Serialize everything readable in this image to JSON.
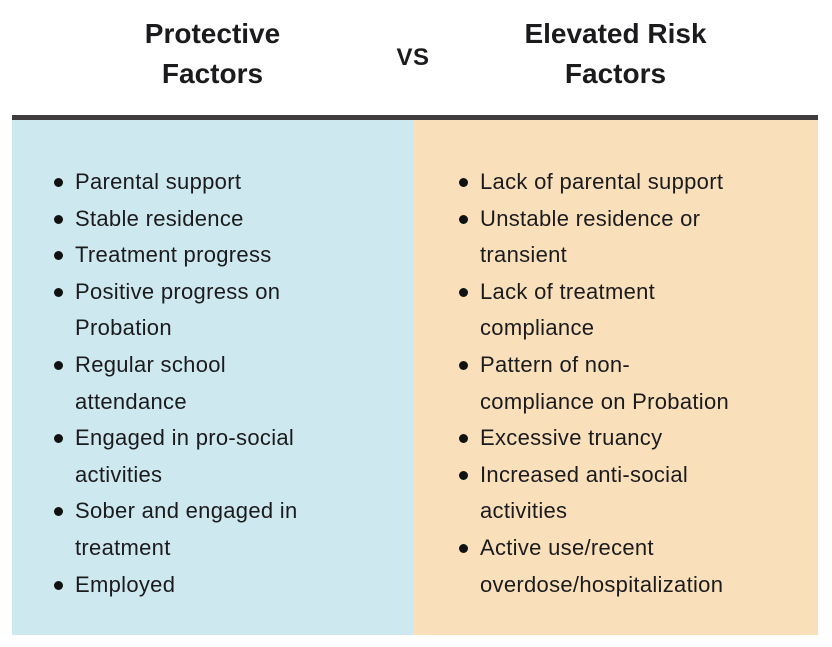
{
  "comparison": {
    "separator_label": "VS",
    "left": {
      "title": "Protective Factors",
      "items": [
        "Parental support",
        "Stable residence",
        "Treatment progress",
        "Positive progress on Probation",
        "Regular school attendance",
        "Engaged in pro-social activities",
        "Sober and engaged in treatment",
        "Employed"
      ]
    },
    "right": {
      "title": "Elevated Risk Factors",
      "items": [
        "Lack of parental support",
        "Unstable residence or transient",
        "Lack of treatment compliance",
        "Pattern of non-compliance on Probation",
        "Excessive truancy",
        "Increased anti-social activities",
        "Active use/recent overdose/hospitalization"
      ]
    }
  },
  "colors": {
    "left_bg": "#cde8ee",
    "right_bg": "#f9e0ba",
    "divider": "#403b3d",
    "text": "#1b1b1e",
    "bullet": "#111111"
  }
}
